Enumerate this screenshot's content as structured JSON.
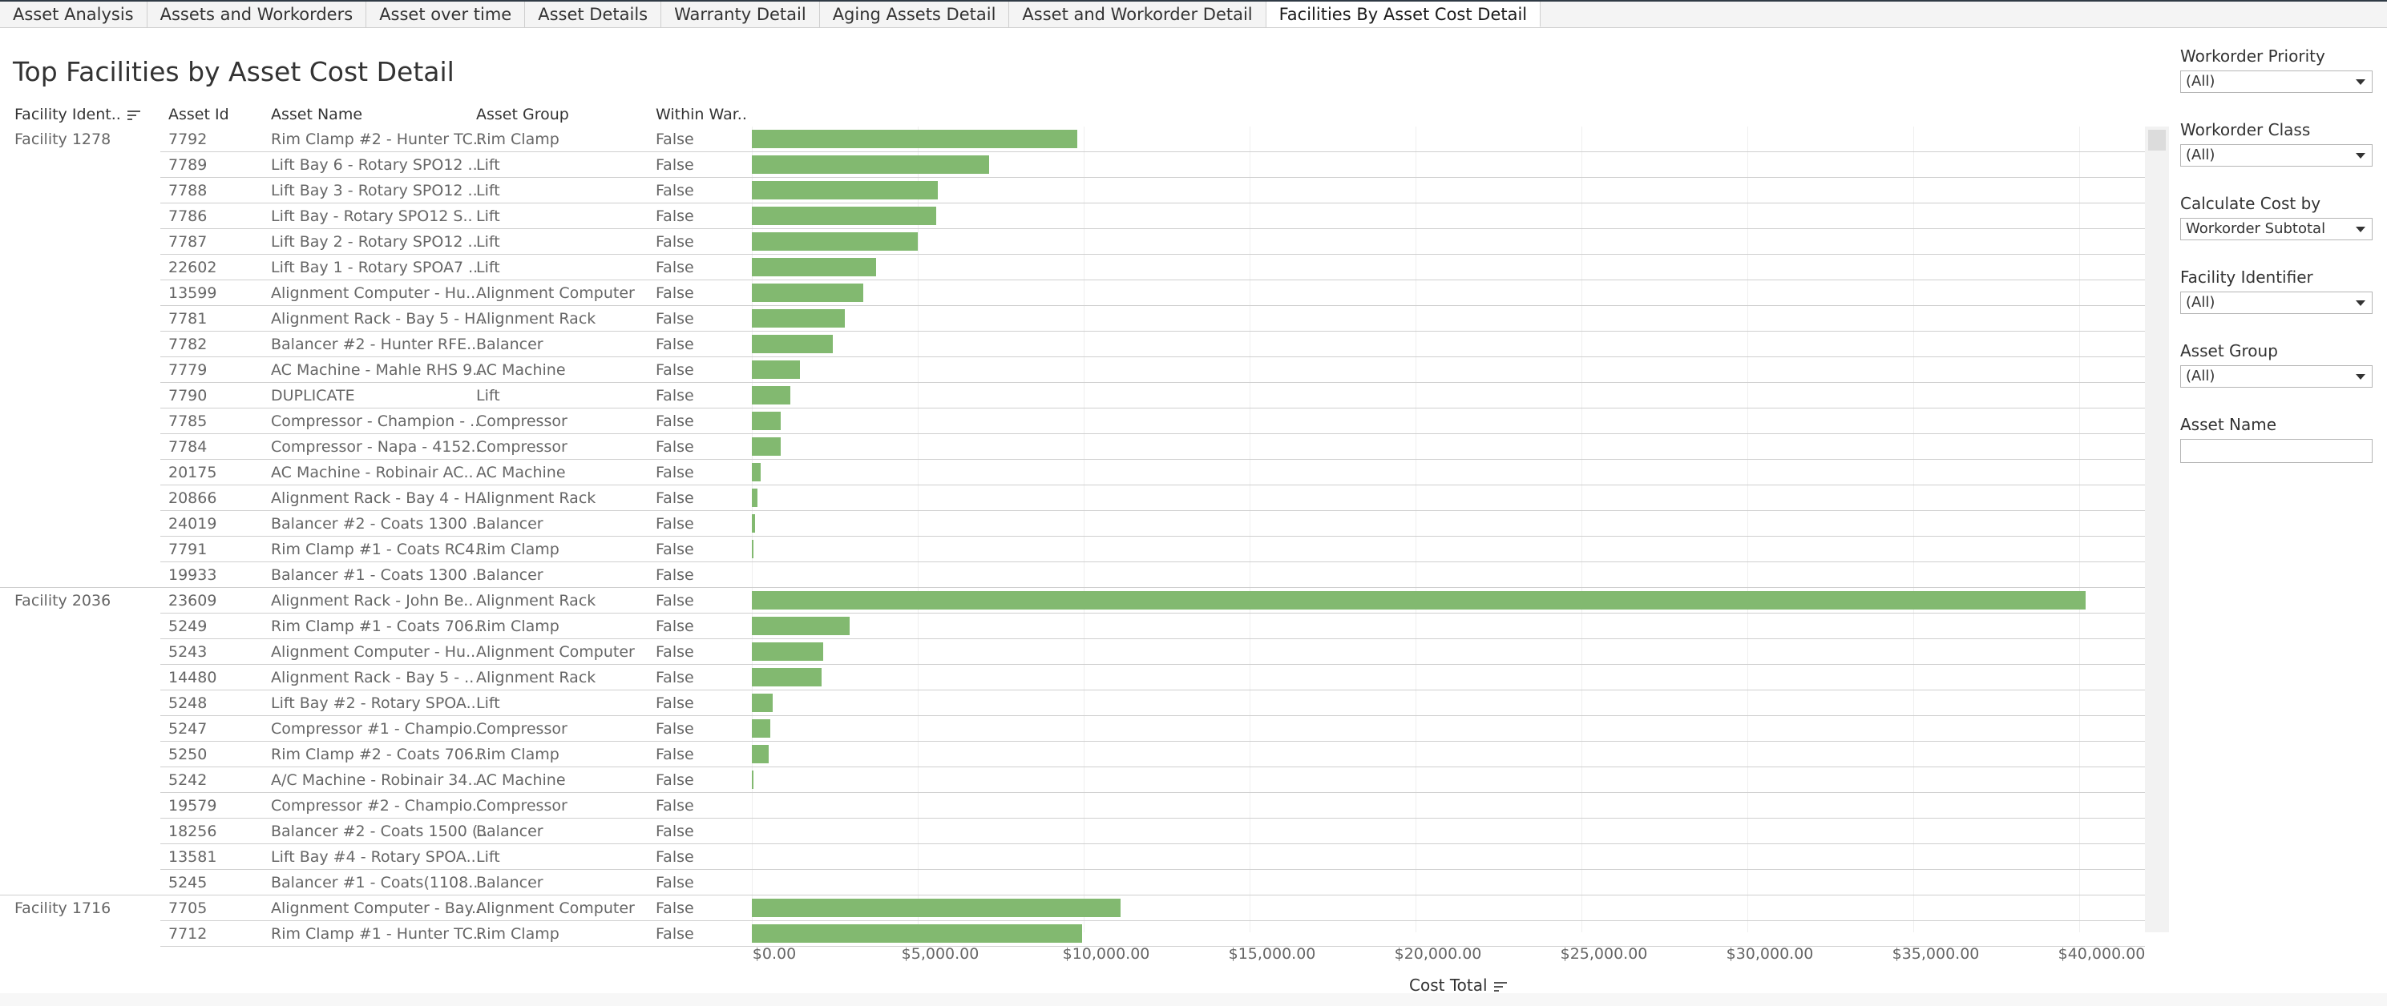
{
  "tabs": [
    {
      "label": "Asset Analysis",
      "active": false
    },
    {
      "label": "Assets and Workorders",
      "active": false
    },
    {
      "label": "Asset over time",
      "active": false
    },
    {
      "label": "Asset Details",
      "active": false
    },
    {
      "label": "Warranty Detail",
      "active": false
    },
    {
      "label": "Aging Assets Detail",
      "active": false
    },
    {
      "label": "Asset and Workorder Detail",
      "active": false
    },
    {
      "label": "Facilities By Asset Cost Detail",
      "active": true
    }
  ],
  "title": "Top Facilities by Asset Cost Detail",
  "columns": {
    "facility": "Facility Ident..",
    "asset_id": "Asset Id",
    "asset_name": "Asset Name",
    "asset_group": "Asset Group",
    "within_warranty": "Within War.."
  },
  "axis": {
    "title": "Cost Total",
    "ticks": [
      "$0.00",
      "$5,000.00",
      "$10,000.00",
      "$15,000.00",
      "$20,000.00",
      "$25,000.00",
      "$30,000.00",
      "$35,000.00",
      "$40,000.00"
    ]
  },
  "filters": [
    {
      "label": "Workorder Priority",
      "value": "(All)",
      "type": "select"
    },
    {
      "label": "Workorder Class",
      "value": "(All)",
      "type": "select"
    },
    {
      "label": "Calculate Cost by",
      "value": "Workorder Subtotal",
      "type": "select"
    },
    {
      "label": "Facility Identifier",
      "value": "(All)",
      "type": "select"
    },
    {
      "label": "Asset Group",
      "value": "(All)",
      "type": "select"
    },
    {
      "label": "Asset Name",
      "value": "",
      "type": "text"
    }
  ],
  "chart_data": {
    "type": "bar",
    "orientation": "horizontal",
    "xlabel": "Cost Total",
    "xlim": [
      0,
      42000
    ],
    "groups": [
      {
        "facility": "Facility 1278",
        "rows": [
          {
            "asset_id": "7792",
            "asset_name": "Rim Clamp #2 - Hunter TC..",
            "asset_group": "Rim Clamp",
            "within_warranty": "False",
            "cost": 9800
          },
          {
            "asset_id": "7789",
            "asset_name": "Lift Bay 6 - Rotary SPO12 ..",
            "asset_group": "Lift",
            "within_warranty": "False",
            "cost": 7150
          },
          {
            "asset_id": "7788",
            "asset_name": "Lift Bay 3 - Rotary SPO12 ..",
            "asset_group": "Lift",
            "within_warranty": "False",
            "cost": 5600
          },
          {
            "asset_id": "7786",
            "asset_name": "Lift Bay - Rotary SPO12 S..",
            "asset_group": "Lift",
            "within_warranty": "False",
            "cost": 5550
          },
          {
            "asset_id": "7787",
            "asset_name": "Lift Bay 2 - Rotary SPO12 ..",
            "asset_group": "Lift",
            "within_warranty": "False",
            "cost": 5000
          },
          {
            "asset_id": "22602",
            "asset_name": "Lift Bay 1 - Rotary SPOA7 ..",
            "asset_group": "Lift",
            "within_warranty": "False",
            "cost": 3750
          },
          {
            "asset_id": "13599",
            "asset_name": "Alignment Computer - Hu..",
            "asset_group": "Alignment Computer",
            "within_warranty": "False",
            "cost": 3350
          },
          {
            "asset_id": "7781",
            "asset_name": "Alignment Rack - Bay 5 - H..",
            "asset_group": "Alignment Rack",
            "within_warranty": "False",
            "cost": 2800
          },
          {
            "asset_id": "7782",
            "asset_name": "Balancer #2 - Hunter RFE..",
            "asset_group": "Balancer",
            "within_warranty": "False",
            "cost": 2450
          },
          {
            "asset_id": "7779",
            "asset_name": "AC Machine - Mahle RHS 9..",
            "asset_group": "AC Machine",
            "within_warranty": "False",
            "cost": 1450
          },
          {
            "asset_id": "7790",
            "asset_name": "DUPLICATE",
            "asset_group": "Lift",
            "within_warranty": "False",
            "cost": 1150
          },
          {
            "asset_id": "7785",
            "asset_name": "Compressor - Champion - ..",
            "asset_group": "Compressor",
            "within_warranty": "False",
            "cost": 880
          },
          {
            "asset_id": "7784",
            "asset_name": "Compressor - Napa - 4152..",
            "asset_group": "Compressor",
            "within_warranty": "False",
            "cost": 870
          },
          {
            "asset_id": "20175",
            "asset_name": "AC Machine - Robinair  AC..",
            "asset_group": "AC Machine",
            "within_warranty": "False",
            "cost": 270
          },
          {
            "asset_id": "20866",
            "asset_name": "Alignment Rack - Bay 4 - H..",
            "asset_group": "Alignment Rack",
            "within_warranty": "False",
            "cost": 180
          },
          {
            "asset_id": "24019",
            "asset_name": "Balancer #2 - Coats 1300 ..",
            "asset_group": "Balancer",
            "within_warranty": "False",
            "cost": 90
          },
          {
            "asset_id": "7791",
            "asset_name": "Rim Clamp #1 - Coats RC4..",
            "asset_group": "Rim Clamp",
            "within_warranty": "False",
            "cost": 30
          },
          {
            "asset_id": "19933",
            "asset_name": "Balancer #1 - Coats 1300 ..",
            "asset_group": "Balancer",
            "within_warranty": "False",
            "cost": 0
          }
        ]
      },
      {
        "facility": "Facility 2036",
        "rows": [
          {
            "asset_id": "23609",
            "asset_name": "Alignment Rack - John Be..",
            "asset_group": "Alignment Rack",
            "within_warranty": "False",
            "cost": 40200
          },
          {
            "asset_id": "5249",
            "asset_name": "Rim Clamp #1 - Coats 706..",
            "asset_group": "Rim Clamp",
            "within_warranty": "False",
            "cost": 2950
          },
          {
            "asset_id": "5243",
            "asset_name": "Alignment Computer - Hu..",
            "asset_group": "Alignment Computer",
            "within_warranty": "False",
            "cost": 2150
          },
          {
            "asset_id": "14480",
            "asset_name": "Alignment Rack - Bay 5 - ..",
            "asset_group": "Alignment Rack",
            "within_warranty": "False",
            "cost": 2100
          },
          {
            "asset_id": "5248",
            "asset_name": "Lift Bay #2 - Rotary SPOA..",
            "asset_group": "Lift",
            "within_warranty": "False",
            "cost": 620
          },
          {
            "asset_id": "5247",
            "asset_name": "Compressor #1 - Champio..",
            "asset_group": "Compressor",
            "within_warranty": "False",
            "cost": 560
          },
          {
            "asset_id": "5250",
            "asset_name": "Rim Clamp #2 - Coats 706..",
            "asset_group": "Rim Clamp",
            "within_warranty": "False",
            "cost": 500
          },
          {
            "asset_id": "5242",
            "asset_name": "A/C Machine - Robinair 34..",
            "asset_group": "AC Machine",
            "within_warranty": "False",
            "cost": 30
          },
          {
            "asset_id": "19579",
            "asset_name": "Compressor #2 - Champio..",
            "asset_group": "Compressor",
            "within_warranty": "False",
            "cost": 0
          },
          {
            "asset_id": "18256",
            "asset_name": "Balancer #2 - Coats 1500 (..",
            "asset_group": "Balancer",
            "within_warranty": "False",
            "cost": 0
          },
          {
            "asset_id": "13581",
            "asset_name": "Lift Bay #4 - Rotary SPOA..",
            "asset_group": "Lift",
            "within_warranty": "False",
            "cost": 0
          },
          {
            "asset_id": "5245",
            "asset_name": "Balancer #1 - Coats(1108..",
            "asset_group": "Balancer",
            "within_warranty": "False",
            "cost": 0
          }
        ]
      },
      {
        "facility": "Facility 1716",
        "rows": [
          {
            "asset_id": "7705",
            "asset_name": "Alignment Computer - Bay..",
            "asset_group": "Alignment Computer",
            "within_warranty": "False",
            "cost": 11100
          },
          {
            "asset_id": "7712",
            "asset_name": "Rim Clamp #1 - Hunter TC..",
            "asset_group": "Rim Clamp",
            "within_warranty": "False",
            "cost": 9950
          }
        ]
      }
    ]
  }
}
